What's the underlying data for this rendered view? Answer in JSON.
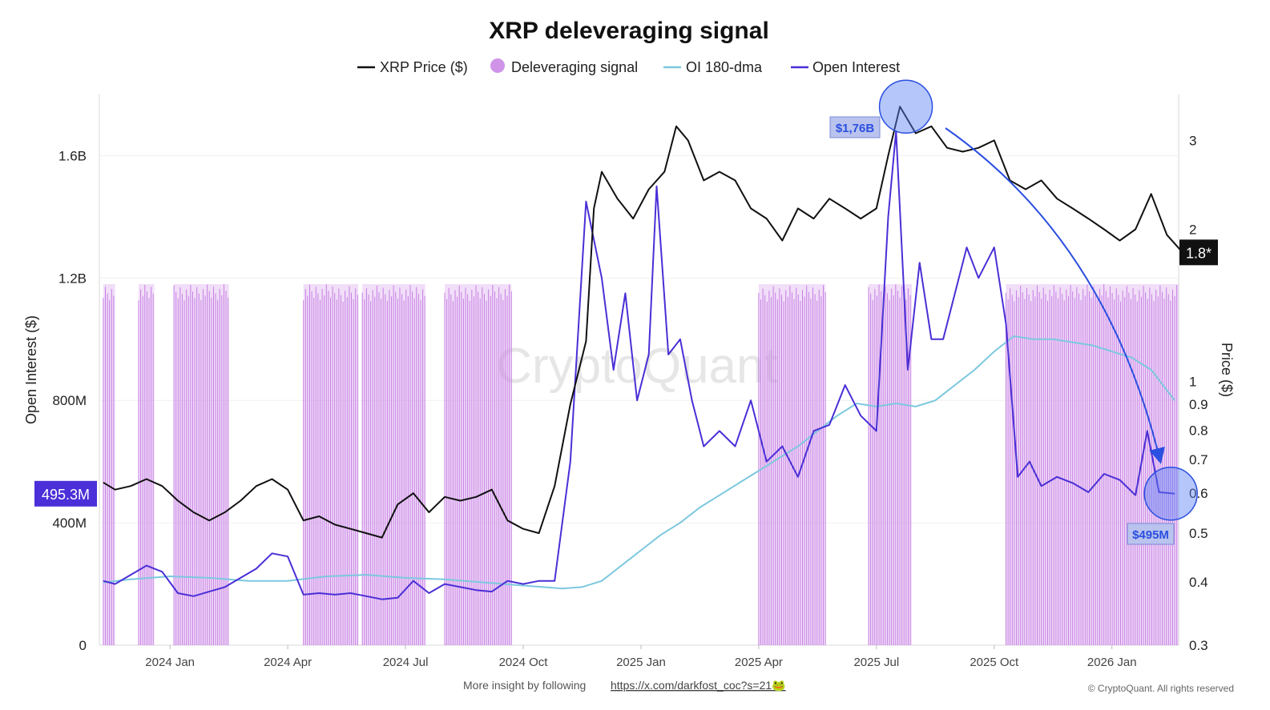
{
  "chart_data": {
    "type": "line",
    "title": "XRP deleveraging signal",
    "legend": [
      {
        "name": "XRP Price ($)",
        "color": "#111111",
        "marker": "line"
      },
      {
        "name": "Deleveraging signal",
        "color": "#cf94e8",
        "marker": "dot"
      },
      {
        "name": "OI 180-dma",
        "color": "#7cc8df",
        "marker": "line"
      },
      {
        "name": "Open Interest",
        "color": "#4a2fd6",
        "marker": "line"
      }
    ],
    "legend_placement": "top-center",
    "watermark": "CryptoQuant",
    "ylabel_left": "Open Interest ($)",
    "ylabel_right": "Price ($)",
    "x_tick_labels": [
      "2024 Jan",
      "2024 Apr",
      "2024 Jul",
      "2024 Oct",
      "2025 Jan",
      "2025 Apr",
      "2025 Jul",
      "2025 Oct",
      "2026 Jan"
    ],
    "x_tick_months": [
      3,
      6,
      9,
      12,
      15,
      18,
      21,
      24,
      27
    ],
    "x_range_months": [
      1.2,
      28.7
    ],
    "y_left_ticks": [
      0,
      400,
      800,
      1200,
      1600
    ],
    "y_left_tick_labels": [
      "0",
      "400M",
      "800M",
      "1.2B",
      "1.6B"
    ],
    "y_left_range_millions": [
      0,
      1800
    ],
    "y_right_ticks": [
      0.3,
      0.4,
      0.5,
      0.6,
      0.7,
      0.8,
      0.9,
      1,
      2,
      3
    ],
    "y_right_tick_labels": [
      "0.3",
      "0.4",
      "0.5",
      "0.6",
      "0.7",
      "0.8",
      "0.9",
      "1",
      "2",
      "3"
    ],
    "y_right_range": [
      0.3,
      3.7
    ],
    "y_right_scale": "log",
    "series": [
      {
        "name": "XRP Price ($)",
        "axis": "right",
        "x_months": [
          1.3,
          1.6,
          2.0,
          2.4,
          2.8,
          3.2,
          3.6,
          4.0,
          4.4,
          4.8,
          5.2,
          5.6,
          6.0,
          6.4,
          6.8,
          7.2,
          7.6,
          8.0,
          8.4,
          8.8,
          9.2,
          9.6,
          10.0,
          10.4,
          10.8,
          11.2,
          11.6,
          12.0,
          12.4,
          12.8,
          13.2,
          13.6,
          13.8,
          14.0,
          14.4,
          14.8,
          15.2,
          15.6,
          15.9,
          16.2,
          16.6,
          17.0,
          17.4,
          17.8,
          18.2,
          18.6,
          19.0,
          19.4,
          19.8,
          20.2,
          20.6,
          21.0,
          21.3,
          21.6,
          22.0,
          22.4,
          22.8,
          23.2,
          23.6,
          24.0,
          24.4,
          24.8,
          25.2,
          25.6,
          26.0,
          26.4,
          26.8,
          27.2,
          27.6,
          28.0,
          28.4,
          28.8
        ],
        "values": [
          0.63,
          0.61,
          0.62,
          0.64,
          0.62,
          0.58,
          0.55,
          0.53,
          0.55,
          0.58,
          0.62,
          0.64,
          0.61,
          0.53,
          0.54,
          0.52,
          0.51,
          0.5,
          0.49,
          0.57,
          0.6,
          0.55,
          0.59,
          0.58,
          0.59,
          0.61,
          0.53,
          0.51,
          0.5,
          0.62,
          0.9,
          1.2,
          2.2,
          2.6,
          2.3,
          2.1,
          2.4,
          2.6,
          3.2,
          3.0,
          2.5,
          2.6,
          2.5,
          2.2,
          2.1,
          1.9,
          2.2,
          2.1,
          2.3,
          2.2,
          2.1,
          2.2,
          2.8,
          3.5,
          3.1,
          3.2,
          2.9,
          2.85,
          2.9,
          3.0,
          2.5,
          2.4,
          2.5,
          2.3,
          2.2,
          2.1,
          2.0,
          1.9,
          2.0,
          2.35,
          1.95,
          1.8
        ]
      },
      {
        "name": "Open Interest",
        "axis": "left",
        "x_months": [
          1.3,
          1.6,
          2.0,
          2.4,
          2.8,
          3.2,
          3.6,
          4.0,
          4.4,
          4.8,
          5.2,
          5.6,
          6.0,
          6.4,
          6.8,
          7.2,
          7.6,
          8.0,
          8.4,
          8.8,
          9.2,
          9.6,
          10.0,
          10.4,
          10.8,
          11.2,
          11.6,
          12.0,
          12.4,
          12.8,
          13.2,
          13.6,
          14.0,
          14.3,
          14.6,
          14.9,
          15.2,
          15.4,
          15.7,
          16.0,
          16.3,
          16.6,
          17.0,
          17.4,
          17.8,
          18.2,
          18.6,
          19.0,
          19.4,
          19.8,
          20.2,
          20.6,
          21.0,
          21.3,
          21.5,
          21.8,
          22.1,
          22.4,
          22.7,
          23.0,
          23.3,
          23.6,
          24.0,
          24.3,
          24.6,
          24.9,
          25.2,
          25.6,
          26.0,
          26.4,
          26.8,
          27.2,
          27.6,
          27.9,
          28.2,
          28.6
        ],
        "values_millions": [
          210,
          200,
          230,
          260,
          240,
          170,
          160,
          175,
          190,
          220,
          250,
          300,
          290,
          165,
          170,
          165,
          170,
          160,
          150,
          155,
          210,
          170,
          200,
          190,
          180,
          175,
          210,
          200,
          210,
          210,
          600,
          1450,
          1200,
          900,
          1150,
          800,
          950,
          1500,
          950,
          1000,
          800,
          650,
          700,
          650,
          800,
          600,
          650,
          550,
          700,
          720,
          850,
          750,
          700,
          1400,
          1680,
          900,
          1250,
          1000,
          1000,
          1150,
          1300,
          1200,
          1300,
          1050,
          550,
          600,
          520,
          550,
          530,
          500,
          560,
          540,
          490,
          700,
          500,
          495
        ]
      },
      {
        "name": "OI 180-dma",
        "axis": "left",
        "x_months": [
          1.3,
          2.0,
          3.0,
          4.0,
          5.0,
          6.0,
          7.0,
          8.0,
          9.0,
          10.0,
          11.0,
          12.0,
          13.0,
          13.5,
          14.0,
          14.5,
          15.0,
          15.5,
          16.0,
          16.5,
          17.0,
          17.5,
          18.0,
          18.5,
          19.0,
          19.5,
          20.0,
          20.5,
          21.0,
          21.5,
          22.0,
          22.5,
          23.0,
          23.5,
          24.0,
          24.5,
          25.0,
          25.5,
          26.0,
          26.5,
          27.0,
          27.5,
          28.0,
          28.6
        ],
        "values_millions": [
          205,
          215,
          225,
          220,
          210,
          210,
          225,
          230,
          220,
          215,
          205,
          195,
          185,
          190,
          210,
          260,
          310,
          360,
          400,
          450,
          490,
          530,
          570,
          610,
          650,
          700,
          750,
          790,
          780,
          790,
          780,
          800,
          850,
          900,
          960,
          1010,
          1000,
          1000,
          990,
          980,
          960,
          940,
          900,
          800
        ]
      }
    ],
    "deleveraging_signal_ranges_months": [
      [
        1.3,
        1.6
      ],
      [
        2.2,
        2.6
      ],
      [
        3.1,
        4.5
      ],
      [
        6.4,
        7.8
      ],
      [
        7.9,
        9.5
      ],
      [
        10.0,
        11.7
      ],
      [
        18.0,
        19.7
      ],
      [
        20.8,
        21.9
      ],
      [
        24.3,
        28.7
      ]
    ],
    "annotations": [
      {
        "text": "$1,76B",
        "month": 21.75,
        "value_millions": 1760
      },
      {
        "text": "$495M",
        "month": 28.5,
        "value_millions": 495
      }
    ],
    "left_axis_marker": "495.3M",
    "right_axis_marker": "1.8*"
  },
  "footer": {
    "text": "More insight by following",
    "link": "https://x.com/darkfost_coc?s=21🐸",
    "copyright": "© CryptoQuant. All rights reserved"
  }
}
